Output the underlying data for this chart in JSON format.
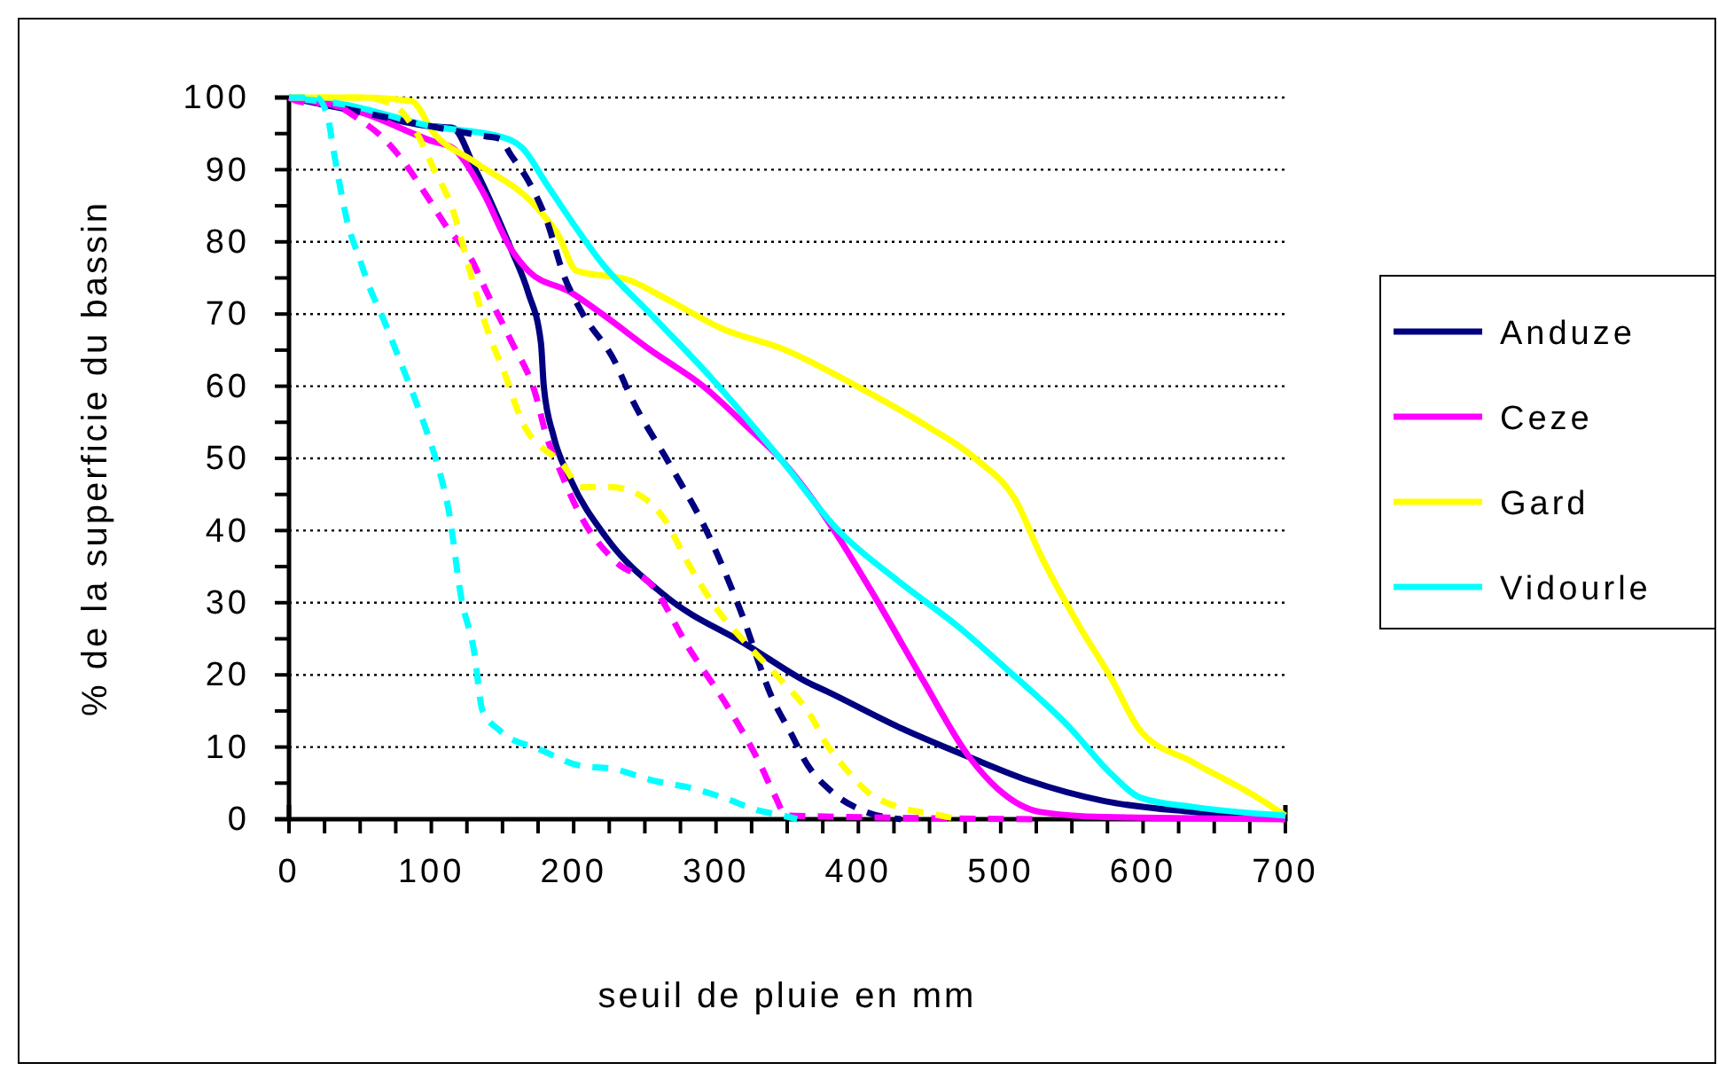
{
  "chart_data": {
    "type": "line",
    "xlabel": "seuil de pluie en mm",
    "ylabel": "% de la superficie du bassin",
    "xlim": [
      0,
      700
    ],
    "ylim": [
      0,
      100
    ],
    "xticks": [
      0,
      {
        "value": 25,
        "label": null
      },
      {
        "value": 50,
        "label": null
      },
      {
        "value": 75,
        "label": null
      },
      100,
      {
        "value": 125,
        "label": null
      },
      {
        "value": 150,
        "label": null
      },
      {
        "value": 175,
        "label": null
      },
      200,
      {
        "value": 225,
        "label": null
      },
      {
        "value": 250,
        "label": null
      },
      {
        "value": 275,
        "label": null
      },
      300,
      {
        "value": 325,
        "label": null
      },
      {
        "value": 350,
        "label": null
      },
      {
        "value": 375,
        "label": null
      },
      400,
      {
        "value": 425,
        "label": null
      },
      {
        "value": 450,
        "label": null
      },
      {
        "value": 475,
        "label": null
      },
      500,
      {
        "value": 525,
        "label": null
      },
      {
        "value": 550,
        "label": null
      },
      {
        "value": 575,
        "label": null
      },
      600,
      {
        "value": 625,
        "label": null
      },
      {
        "value": 650,
        "label": null
      },
      {
        "value": 675,
        "label": null
      },
      700
    ],
    "yticks": [
      0,
      {
        "value": 5,
        "label": null
      },
      10,
      {
        "value": 15,
        "label": null
      },
      20,
      {
        "value": 25,
        "label": null
      },
      30,
      {
        "value": 35,
        "label": null
      },
      40,
      {
        "value": 45,
        "label": null
      },
      50,
      {
        "value": 55,
        "label": null
      },
      60,
      {
        "value": 65,
        "label": null
      },
      70,
      {
        "value": 75,
        "label": null
      },
      80,
      {
        "value": 85,
        "label": null
      },
      90,
      {
        "value": 95,
        "label": null
      },
      100
    ],
    "grid": "y",
    "legend": "right",
    "marker": "none",
    "series": [
      {
        "name": "Anduze",
        "color": "#000080",
        "line_style": "solid",
        "x": [
          0,
          50,
          100,
          115,
          131,
          143,
          156,
          168,
          177,
          179,
          186,
          198,
          223,
          264,
          323,
          364,
          378,
          428,
          478,
          519,
          573,
          635,
          700
        ],
        "values": [
          100,
          98,
          96,
          95.8,
          90,
          85,
          79,
          73,
          66,
          60,
          53,
          47,
          39,
          31,
          24,
          19,
          17.7,
          12.8,
          8.6,
          5.4,
          2.5,
          1,
          0
        ]
      },
      {
        "name": "Ceze",
        "color": "#ff00ff",
        "line_style": "solid",
        "x": [
          0,
          50,
          100,
          115,
          136,
          156,
          168,
          198,
          220,
          254,
          291,
          324,
          345,
          378,
          411,
          445,
          478,
          498,
          528,
          573,
          700
        ],
        "values": [
          100,
          98,
          94,
          93,
          87,
          79,
          76,
          73,
          70,
          65,
          60,
          54,
          50,
          41.5,
          31,
          19.4,
          8.6,
          4.2,
          1,
          0.3,
          0
        ]
      },
      {
        "name": "Gard",
        "color": "#ffff00",
        "line_style": "solid",
        "x": [
          0,
          50,
          86,
          102,
          131,
          173,
          189,
          202,
          239,
          266,
          304,
          349,
          399,
          448,
          482,
          511,
          528,
          553,
          578,
          598,
          635,
          677,
          700
        ],
        "values": [
          100,
          100,
          99.5,
          95,
          91,
          85,
          81,
          76,
          74.7,
          72,
          68,
          65,
          60,
          54.5,
          50,
          44,
          36.6,
          27.5,
          19.4,
          12.3,
          7.9,
          3.4,
          0.5
        ]
      },
      {
        "name": "Vidourle",
        "color": "#00ffff",
        "line_style": "solid",
        "x": [
          0,
          40,
          100,
          148,
          164,
          181,
          198,
          220,
          254,
          295,
          345,
          386,
          428,
          470,
          503,
          548,
          578,
          598,
          635,
          700
        ],
        "values": [
          100,
          99,
          96,
          94.6,
          93,
          88,
          83,
          77,
          70,
          61.5,
          50,
          40,
          33,
          26.7,
          21,
          12.8,
          6.2,
          3,
          1.7,
          0.5
        ]
      },
      {
        "color": "#000080",
        "line_style": "dashed",
        "x": [
          0,
          50,
          100,
          139,
          148,
          156,
          168,
          181,
          193,
          205,
          230,
          239,
          268,
          292,
          317,
          339,
          355,
          361,
          382,
          403,
          430
        ],
        "values": [
          100,
          98,
          96,
          94.6,
          94.3,
          92,
          88.5,
          83,
          75.4,
          70.5,
          63,
          59,
          49,
          40.5,
          29,
          17,
          11,
          8.6,
          3.7,
          1.2,
          0
        ]
      },
      {
        "color": "#ff00ff",
        "line_style": "dashed",
        "x": [
          0,
          6,
          31,
          49,
          65,
          81,
          98,
          111,
          127,
          139,
          156,
          173,
          181,
          189,
          205,
          230,
          255,
          280,
          310,
          330,
          342,
          349,
          530
        ],
        "values": [
          100,
          99.5,
          99,
          97,
          94.6,
          91,
          86,
          82,
          78,
          73,
          66.3,
          59,
          53,
          49,
          42,
          35.6,
          32.4,
          24,
          15,
          8,
          3,
          0.5,
          0
        ]
      },
      {
        "color": "#ffff00",
        "line_style": "dashed",
        "x": [
          0,
          52,
          73,
          90,
          102,
          115,
          127,
          139,
          152,
          164,
          193,
          205,
          227,
          248,
          264,
          280,
          301,
          323,
          345,
          366,
          378,
          391,
          407,
          428,
          453,
          470
        ],
        "values": [
          100,
          100,
          99,
          95,
          90,
          84.5,
          76,
          68,
          61.5,
          55,
          49,
          46,
          46,
          44.7,
          41.5,
          35.6,
          29,
          24,
          19.4,
          14.5,
          10.3,
          7,
          3.7,
          1.7,
          0.7,
          0
        ]
      },
      {
        "color": "#00ffff",
        "line_style": "dashed",
        "x": [
          0,
          19,
          27,
          31,
          42,
          49,
          56,
          67,
          77,
          87,
          98,
          106,
          112,
          121,
          130,
          136,
          148,
          177,
          205,
          227,
          255,
          285,
          305,
          330,
          347,
          357
        ],
        "values": [
          100,
          100,
          97.5,
          93,
          82,
          78,
          74,
          69,
          64,
          59,
          53,
          48,
          43,
          30.7,
          23.3,
          15,
          12.3,
          9.6,
          7.4,
          7,
          5.4,
          4.2,
          3,
          1.2,
          0.5,
          0
        ]
      }
    ]
  }
}
